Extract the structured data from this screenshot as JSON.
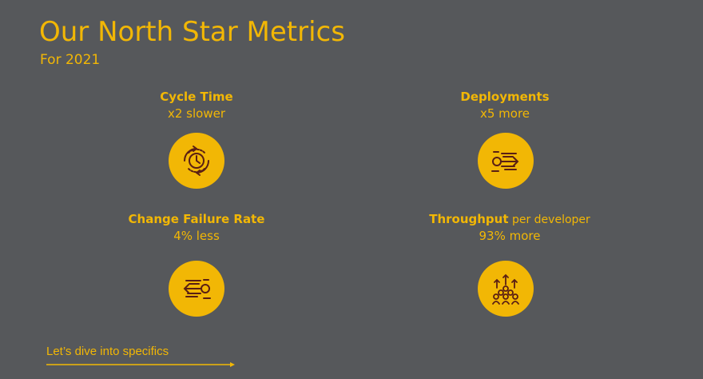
{
  "header": {
    "title": "Our North Star Metrics",
    "subtitle": "For 2021"
  },
  "colors": {
    "background": "#56585b",
    "accent": "#f2b705",
    "icon_stroke": "#5a1f14"
  },
  "metrics": [
    {
      "name": "Cycle Time",
      "name_suffix": "",
      "value": "x2 slower",
      "icon": "clock-cycle-icon"
    },
    {
      "name": "Deployments",
      "name_suffix": "",
      "value": "x5 more",
      "icon": "deploy-speed-icon"
    },
    {
      "name": "Change Failure Rate",
      "name_suffix": "",
      "value": "4% less",
      "icon": "failure-rewind-icon"
    },
    {
      "name": "Throughput",
      "name_suffix": " per developer",
      "value": "93% more",
      "icon": "team-growth-icon"
    }
  ],
  "cta": {
    "label": "Let’s dive into specifics"
  }
}
